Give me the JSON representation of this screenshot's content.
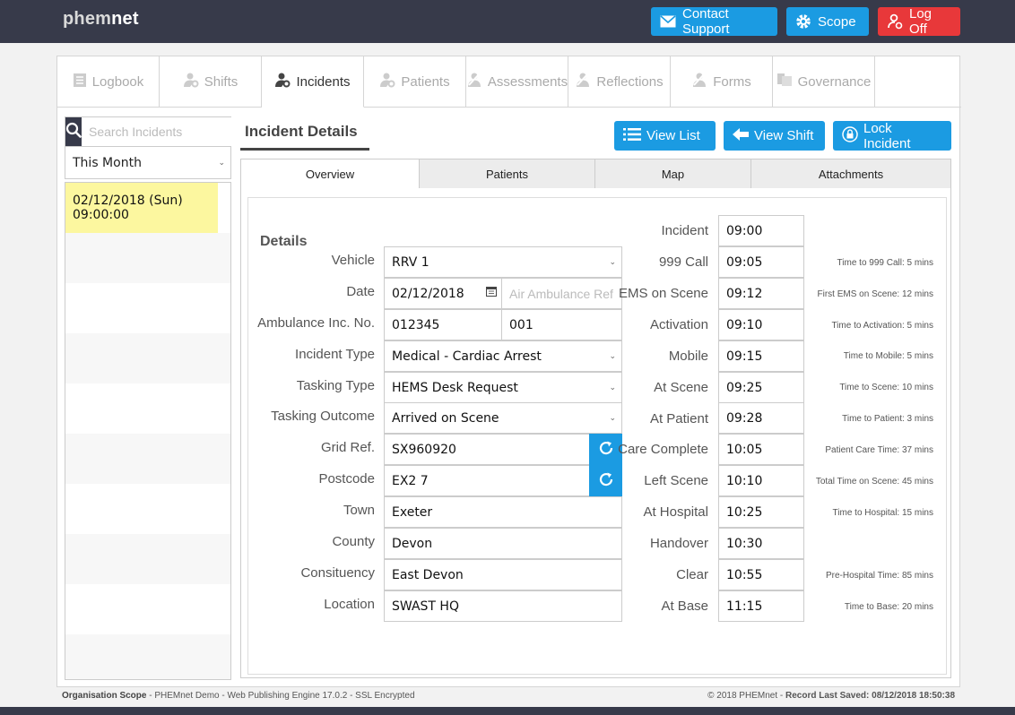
{
  "app": {
    "logo_prefix": "phem",
    "logo_suffix": "net"
  },
  "topbar": {
    "contact_support": "Contact Support",
    "scope": "Scope",
    "log_off": "Log Off"
  },
  "main_tabs": [
    {
      "label": "Logbook",
      "icon": "logbook-icon"
    },
    {
      "label": "Shifts",
      "icon": "shifts-icon"
    },
    {
      "label": "Incidents",
      "icon": "incidents-icon"
    },
    {
      "label": "Patients",
      "icon": "patients-icon"
    },
    {
      "label": "Assessments",
      "icon": "assessments-icon"
    },
    {
      "label": "Reflections",
      "icon": "reflections-icon"
    },
    {
      "label": "Forms",
      "icon": "forms-icon"
    },
    {
      "label": "Governance",
      "icon": "governance-icon"
    }
  ],
  "sidebar": {
    "search_placeholder": "Search Incidents",
    "period": "This Month",
    "incidents": [
      {
        "date": "02/12/2018 (Sun)",
        "time": "09:00:00"
      }
    ]
  },
  "content": {
    "title": "Incident Details",
    "view_list": "View List",
    "view_shift": "View Shift",
    "lock_incident": "Lock Incident",
    "subtabs": [
      "Overview",
      "Patients",
      "Map",
      "Attachments"
    ]
  },
  "details": {
    "section_title": "Details",
    "vehicle_label": "Vehicle",
    "vehicle": "RRV 1",
    "date_label": "Date",
    "date": "02/12/2018",
    "air_ambulance_placeholder": "Air Ambulance Ref",
    "ambulance_label": "Ambulance Inc. No.",
    "ambulance_no": "012345",
    "ambulance_suffix": "001",
    "incident_type_label": "Incident Type",
    "incident_type": "Medical - Cardiac Arrest",
    "tasking_type_label": "Tasking Type",
    "tasking_type": "HEMS Desk Request",
    "tasking_outcome_label": "Tasking Outcome",
    "tasking_outcome": "Arrived on Scene",
    "grid_ref_label": "Grid Ref.",
    "grid_ref": "SX960920",
    "postcode_label": "Postcode",
    "postcode": "EX2 7",
    "town_label": "Town",
    "town": "Exeter",
    "county_label": "County",
    "county": "Devon",
    "constituency_label": "Consituency",
    "constituency": "East Devon",
    "location_label": "Location",
    "location": "SWAST HQ"
  },
  "times": [
    {
      "label": "Incident",
      "value": "09:00",
      "note": ""
    },
    {
      "label": "999 Call",
      "value": "09:05",
      "note": "Time to 999 Call: 5 mins"
    },
    {
      "label": "EMS on Scene",
      "value": "09:12",
      "note": "First EMS on Scene: 12 mins"
    },
    {
      "label": "Activation",
      "value": "09:10",
      "note": "Time to Activation: 5 mins"
    },
    {
      "label": "Mobile",
      "value": "09:15",
      "note": "Time to Mobile: 5 mins"
    },
    {
      "label": "At Scene",
      "value": "09:25",
      "note": "Time to Scene: 10 mins"
    },
    {
      "label": "At Patient",
      "value": "09:28",
      "note": "Time to Patient: 3 mins"
    },
    {
      "label": "Care Complete",
      "value": "10:05",
      "note": "Patient Care Time: 37 mins"
    },
    {
      "label": "Left Scene",
      "value": "10:10",
      "note": "Total Time on Scene: 45 mins"
    },
    {
      "label": "At Hospital",
      "value": "10:25",
      "note": "Time to Hospital: 15 mins"
    },
    {
      "label": "Handover",
      "value": "10:30",
      "note": ""
    },
    {
      "label": "Clear",
      "value": "10:55",
      "note": "Pre-Hospital Time: 85 mins"
    },
    {
      "label": "At Base",
      "value": "11:15",
      "note": "Time to Base: 20 mins"
    }
  ],
  "footer": {
    "scope_label": "Organisation Scope",
    "scope_text": " - PHEMnet Demo - Web Publishing Engine 17.0.2 - SSL Encrypted",
    "copyright": "© 2018 PHEMnet",
    "saved_label": "Record Last Saved: 08/12/2018 18:50:38"
  },
  "colors": {
    "accent": "#1b9be2",
    "danger": "#e8383a",
    "header": "#373a4a",
    "selected": "#fcf79f"
  }
}
